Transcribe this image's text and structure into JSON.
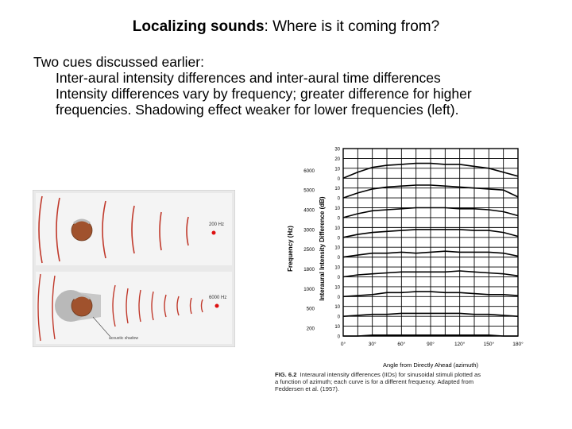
{
  "slide": {
    "title_bold": "Localizing sounds",
    "title_rest": ": Where is it coming from?",
    "lines": [
      "Two cues discussed earlier:",
      "Inter-aural intensity differences and inter-aural time differences",
      "Intensity differences vary by frequency; greater difference for higher",
      "frequencies. Shadowing effect weaker for lower frequencies (left)."
    ]
  },
  "left_figure": {
    "top_label": "200 Hz",
    "bottom_label": "6000 Hz",
    "shadow_label": "acoustic shadow"
  },
  "chart_data": {
    "type": "line",
    "title": "",
    "xlabel": "Angle from Directly Ahead (azimuth)",
    "ylabel_left": "Frequency (Hz)",
    "ylabel_right": "Interaural Intensity Difference (dB)",
    "x_ticks": [
      "0°",
      "30°",
      "60°",
      "90°",
      "120°",
      "150°",
      "180°"
    ],
    "x": [
      0,
      15,
      30,
      45,
      60,
      75,
      90,
      105,
      120,
      135,
      150,
      165,
      180
    ],
    "frequency_labels": [
      "6000",
      "5000",
      "4000",
      "3000",
      "2500",
      "1800",
      "1000",
      "500",
      "200"
    ],
    "db_tick_labels": [
      "30",
      "20",
      "10",
      "0",
      "10",
      "0",
      "10",
      "0",
      "10",
      "0",
      "10",
      "0",
      "10",
      "0",
      "10",
      "0",
      "10",
      "0",
      "10",
      "0"
    ],
    "series": [
      {
        "name": "6000",
        "values": [
          0,
          6,
          11,
          13,
          14,
          15,
          15,
          14,
          14,
          12,
          10,
          6,
          2
        ]
      },
      {
        "name": "5000",
        "values": [
          0,
          5,
          9,
          11,
          12,
          13,
          13,
          12,
          11,
          10,
          9,
          8,
          1
        ]
      },
      {
        "name": "4000",
        "values": [
          0,
          4,
          7,
          8,
          9,
          10,
          10,
          10,
          9,
          9,
          8,
          6,
          2
        ]
      },
      {
        "name": "3000",
        "values": [
          0,
          3,
          5,
          6,
          7,
          8,
          8,
          8,
          8,
          7,
          7,
          5,
          1
        ]
      },
      {
        "name": "2500",
        "values": [
          0,
          2,
          4,
          4,
          5,
          4,
          5,
          6,
          5,
          5,
          5,
          4,
          1
        ]
      },
      {
        "name": "1800",
        "values": [
          0,
          2,
          3,
          4,
          5,
          5,
          5,
          5,
          6,
          5,
          4,
          3,
          1
        ]
      },
      {
        "name": "1000",
        "values": [
          0,
          1,
          2,
          4,
          4,
          5,
          5,
          4,
          4,
          3,
          2,
          2,
          1
        ]
      },
      {
        "name": "500",
        "values": [
          0,
          1,
          2,
          2,
          3,
          3,
          3,
          3,
          3,
          2,
          2,
          1,
          0
        ]
      },
      {
        "name": "200",
        "values": [
          0,
          0,
          1,
          1,
          1,
          1,
          1,
          1,
          1,
          1,
          1,
          0,
          0
        ]
      }
    ]
  },
  "caption": {
    "fig": "FIG. 6.2",
    "line1": "Interaural intensity differences (IIDs) for sinusoidal stimuli plotted as",
    "line2": "a function of azimuth; each curve is for a different frequency. Adapted from",
    "line3": "Feddersen et al. (1957)."
  }
}
